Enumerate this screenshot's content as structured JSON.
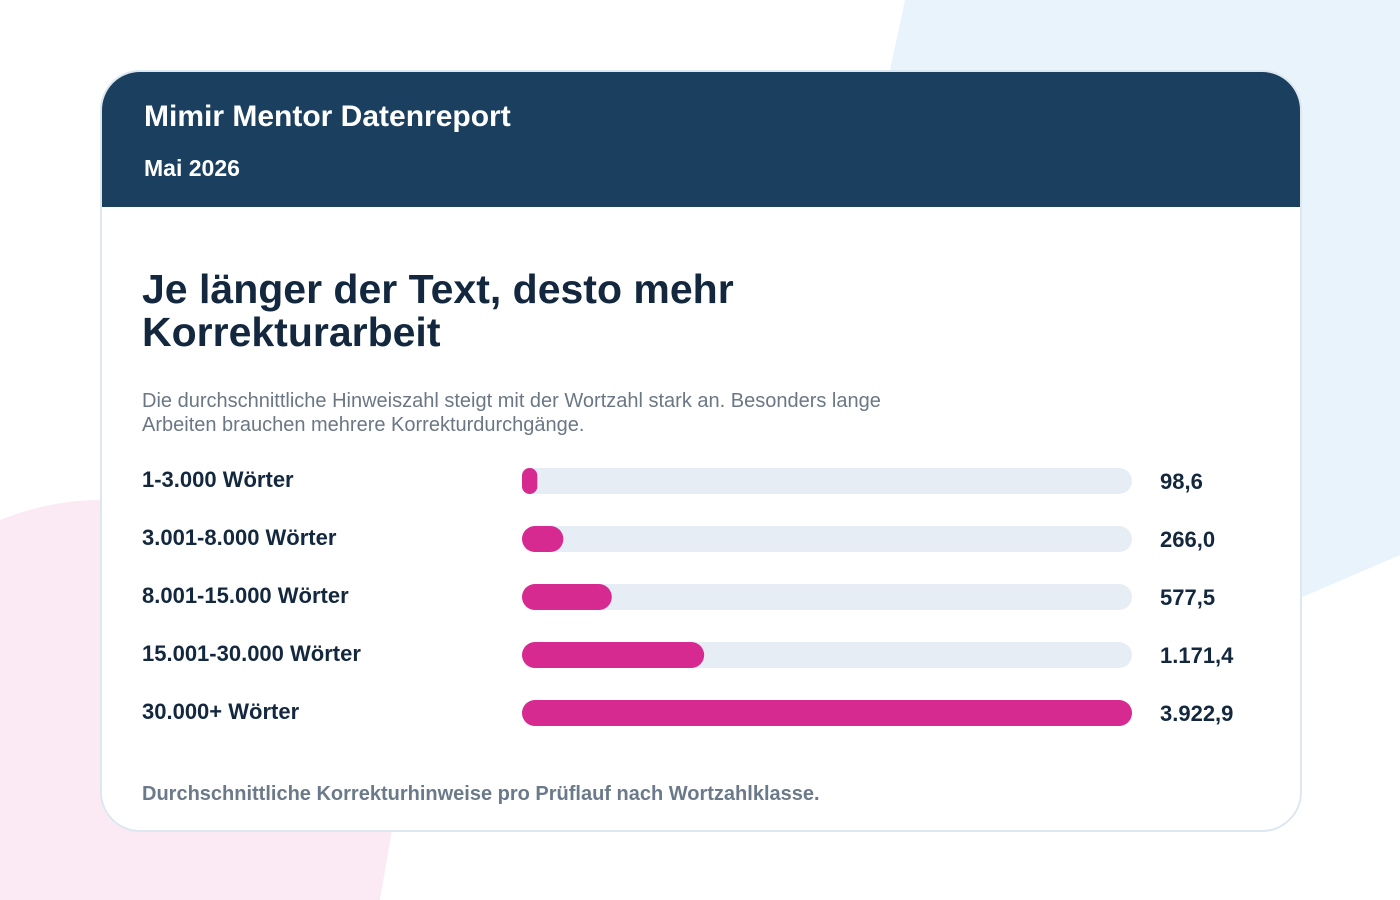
{
  "header": {
    "title": "Mimir Mentor Datenreport",
    "subtitle": "Mai 2026"
  },
  "chart_data": {
    "type": "bar",
    "orientation": "horizontal",
    "title": "Je länger der Text, desto mehr Korrekturarbeit",
    "subtitle": "Die durchschnittliche Hinweiszahl steigt mit der Wortzahl stark an. Besonders lange Arbeiten brauchen mehrere Korrekturdurchgänge.",
    "categories": [
      "1-3.000 Wörter",
      "3.001-8.000 Wörter",
      "8.001-15.000 Wörter",
      "15.001-30.000 Wörter",
      "30.000+ Wörter"
    ],
    "values": [
      98.6,
      266.0,
      577.5,
      1171.4,
      3922.9
    ],
    "value_labels": [
      "98,6",
      "266,0",
      "577,5",
      "1.171,4",
      "3.922,9"
    ],
    "color": "#d62a91",
    "caption": "Durchschnittliche Korrekturhinweise pro Prüflauf nach Wortzahlklasse."
  }
}
